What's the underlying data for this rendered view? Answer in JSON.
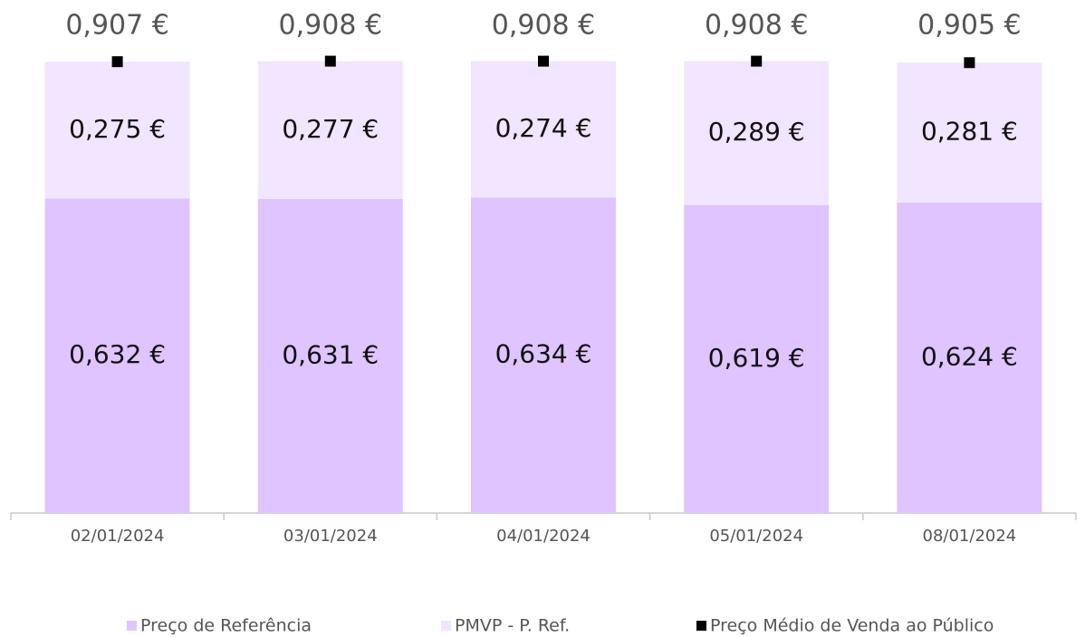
{
  "chart_data": {
    "type": "bar",
    "stacked": true,
    "categories": [
      "02/01/2024",
      "03/01/2024",
      "04/01/2024",
      "05/01/2024",
      "08/01/2024"
    ],
    "ylim": [
      0,
      1
    ],
    "series": [
      {
        "name": "Preço de Referência",
        "color": "#dfc4ff",
        "values": [
          0.632,
          0.631,
          0.634,
          0.619,
          0.624
        ],
        "value_labels": [
          "0,632 €",
          "0,631 €",
          "0,634 €",
          "0,619 €",
          "0,624 €"
        ]
      },
      {
        "name": "PMVP - P. Ref.",
        "color": "#f1e5ff",
        "values": [
          0.275,
          0.277,
          0.274,
          0.289,
          0.281
        ],
        "value_labels": [
          "0,275 €",
          "0,277 €",
          "0,274 €",
          "0,289 €",
          "0,281 €"
        ]
      },
      {
        "name": "Preço Médio de Venda ao Público",
        "type": "scatter",
        "color": "#000000",
        "values": [
          0.907,
          0.908,
          0.908,
          0.908,
          0.905
        ],
        "value_labels": [
          "0,907 €",
          "0,908 €",
          "0,908 €",
          "0,908 €",
          "0,905 €"
        ]
      }
    ]
  }
}
